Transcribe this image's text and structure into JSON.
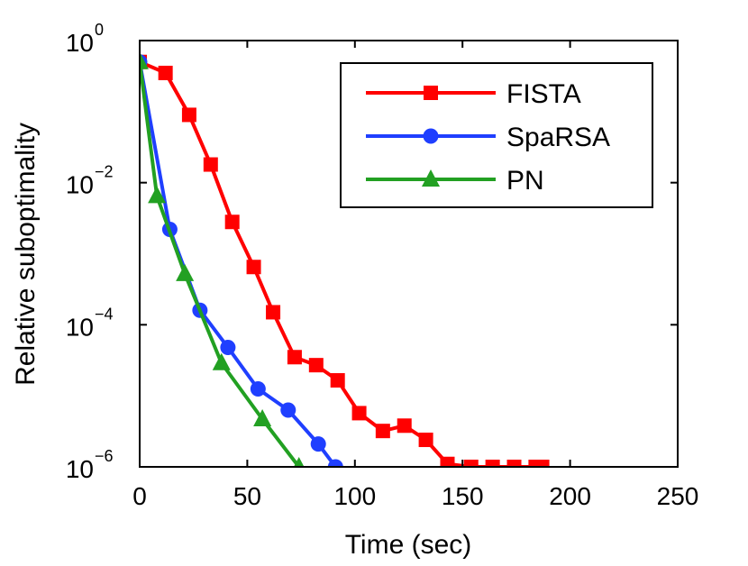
{
  "chart_data": {
    "type": "line",
    "title": "",
    "xlabel": "Time (sec)",
    "ylabel": "Relative suboptimality",
    "xlim": [
      0,
      250
    ],
    "ylim": [
      1e-06,
      1
    ],
    "yscale": "log",
    "grid": false,
    "legend_position": "top-right",
    "xticks": [
      0,
      50,
      100,
      150,
      200,
      250
    ],
    "yticks": [
      {
        "value": 1.0,
        "base": "10",
        "exp": "0"
      },
      {
        "value": 0.01,
        "base": "10",
        "exp": "−2"
      },
      {
        "value": 0.0001,
        "base": "10",
        "exp": "−4"
      },
      {
        "value": 1e-06,
        "base": "10",
        "exp": "−6"
      }
    ],
    "series": [
      {
        "name": "FISTA",
        "color": "#ff0000",
        "marker": "square",
        "x": [
          0,
          12,
          23,
          33,
          43,
          53,
          62,
          72,
          82,
          92,
          102,
          113,
          123,
          133,
          143,
          154,
          164,
          174,
          184,
          187
        ],
        "y": [
          0.5,
          0.35,
          0.09,
          0.018,
          0.0028,
          0.00065,
          0.00015,
          3.5e-05,
          2.7e-05,
          1.65e-05,
          5.7e-06,
          3.2e-06,
          3.8e-06,
          2.4e-06,
          1.1e-06,
          1e-06,
          1e-06,
          1e-06,
          1e-06,
          1e-06
        ]
      },
      {
        "name": "SpaRSA",
        "color": "#1f3fff",
        "marker": "circle",
        "x": [
          0,
          14,
          28,
          41,
          55,
          69,
          83,
          91
        ],
        "y": [
          0.5,
          0.0022,
          0.00016,
          4.8e-05,
          1.25e-05,
          6.3e-06,
          2.1e-06,
          1e-06
        ]
      },
      {
        "name": "PN",
        "color": "#22a022",
        "marker": "triangle",
        "x": [
          0,
          8,
          21,
          38,
          57,
          74
        ],
        "y": [
          0.5,
          0.0065,
          0.00052,
          2.9e-05,
          4.7e-06,
          1e-06
        ]
      }
    ]
  }
}
